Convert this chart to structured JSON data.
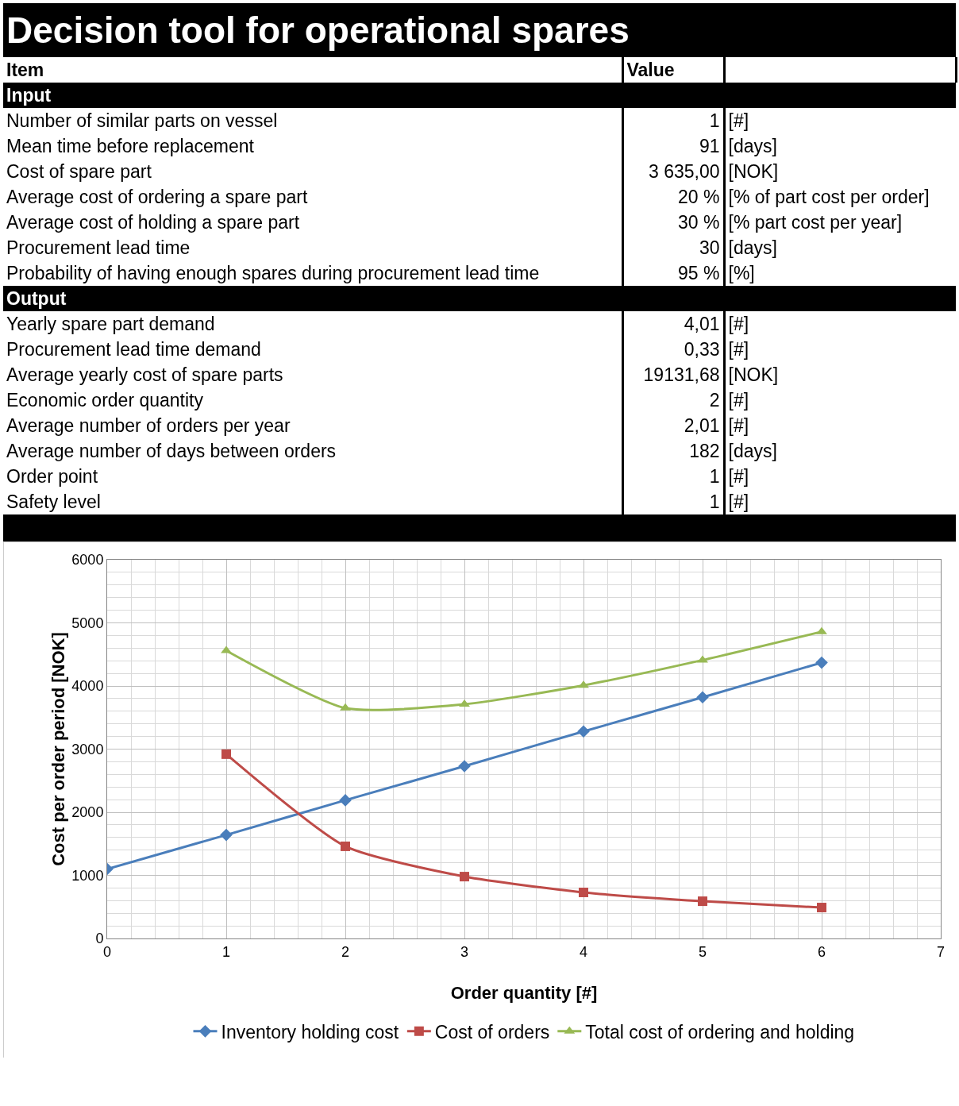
{
  "chart_data": [
    {
      "type": "other",
      "title": "Decision tool for operational spares",
      "annotations": [
        "Item",
        "Value"
      ]
    },
    {
      "type": "other",
      "title": "Input",
      "categories": [
        "Number of similar parts on vessel",
        "Mean time before replacement",
        "Cost of spare part",
        "Average cost of ordering a spare part",
        "Average cost of holding a spare part",
        "Procurement lead time",
        "Probability of having enough spares during procurement lead time"
      ],
      "value_labels": [
        "1",
        "91",
        "3 635,00",
        "20 %",
        "30 %",
        "30",
        "95 %"
      ],
      "annotations": [
        "[#]",
        "[days]",
        "[NOK]",
        "[% of part cost per order]",
        "[% part cost per year]",
        "[days]",
        "[%]"
      ]
    },
    {
      "type": "other",
      "title": "Output",
      "categories": [
        "Yearly spare part demand",
        "Procurement lead time demand",
        "Average yearly cost of spare parts",
        "Economic order quantity",
        "Average number of orders per year",
        "Average number of days between orders",
        "Order point",
        "Safety level"
      ],
      "value_labels": [
        "4,01",
        "0,33",
        "19131,68",
        "2",
        "2,01",
        "182",
        "1",
        "1"
      ],
      "annotations": [
        "[#]",
        "[#]",
        "[NOK]",
        "[#]",
        "[#]",
        "[days]",
        "[#]",
        "[#]"
      ]
    },
    {
      "type": "line",
      "xlabel": "Order quantity [#]",
      "ylabel": "Cost per order period [NOK]",
      "xlim": [
        0,
        7
      ],
      "xticks": [
        0,
        1,
        2,
        3,
        4,
        5,
        6,
        7
      ],
      "ylim": [
        0,
        6000
      ],
      "yticks": [
        0,
        1000,
        2000,
        3000,
        4000,
        5000,
        6000
      ],
      "grid": true,
      "legend": "bottom",
      "series": [
        {
          "name": "Inventory holding cost",
          "color": "#4a7ebb",
          "marker": "diamond",
          "x": [
            0,
            1,
            2,
            3,
            4,
            5,
            6
          ],
          "values": [
            1100,
            1640,
            2190,
            2730,
            3280,
            3820,
            4370
          ]
        },
        {
          "name": "Cost of orders",
          "color": "#be4b48",
          "marker": "square",
          "x": [
            1,
            2,
            3,
            4,
            5,
            6
          ],
          "values": [
            2920,
            1460,
            980,
            730,
            590,
            490
          ]
        },
        {
          "name": "Total cost of ordering and holding",
          "color": "#98b954",
          "marker": "triangle",
          "x": [
            1,
            2,
            3,
            4,
            5,
            6
          ],
          "values": [
            4560,
            3650,
            3710,
            4010,
            4410,
            4860
          ]
        }
      ]
    }
  ]
}
